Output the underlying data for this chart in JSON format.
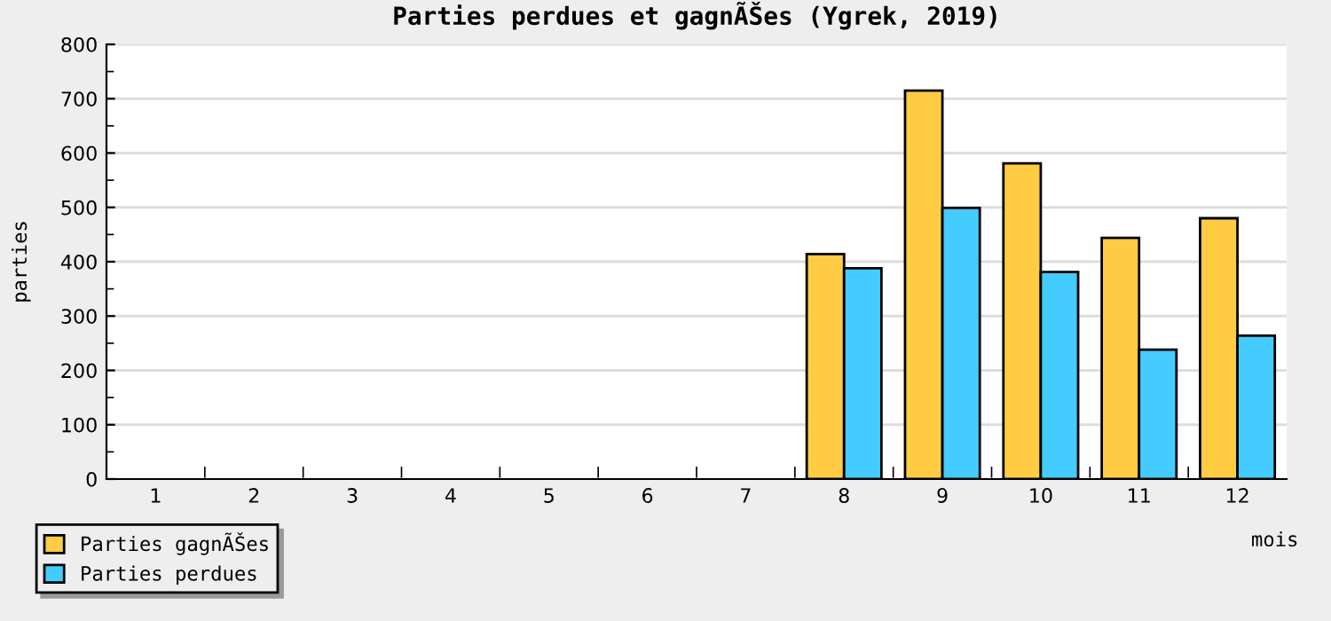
{
  "chart_data": {
    "type": "bar",
    "title": "Parties perdues et gagnÃŠes (Ygrek, 2019)",
    "xlabel": "mois",
    "ylabel": "parties",
    "categories": [
      "1",
      "2",
      "3",
      "4",
      "5",
      "6",
      "7",
      "8",
      "9",
      "10",
      "11",
      "12"
    ],
    "series": [
      {
        "name": "Parties gagnÃŠes",
        "color": "#ffcc44",
        "values": [
          null,
          null,
          null,
          null,
          null,
          null,
          null,
          414,
          715,
          581,
          444,
          480
        ]
      },
      {
        "name": "Parties perdues",
        "color": "#44ccff",
        "values": [
          null,
          null,
          null,
          null,
          null,
          null,
          null,
          388,
          499,
          381,
          238,
          264
        ]
      }
    ],
    "ylim": [
      0,
      800
    ],
    "yticks": [
      0,
      100,
      200,
      300,
      400,
      500,
      600,
      700,
      800
    ],
    "grid": "y",
    "legend": "bottom left"
  }
}
